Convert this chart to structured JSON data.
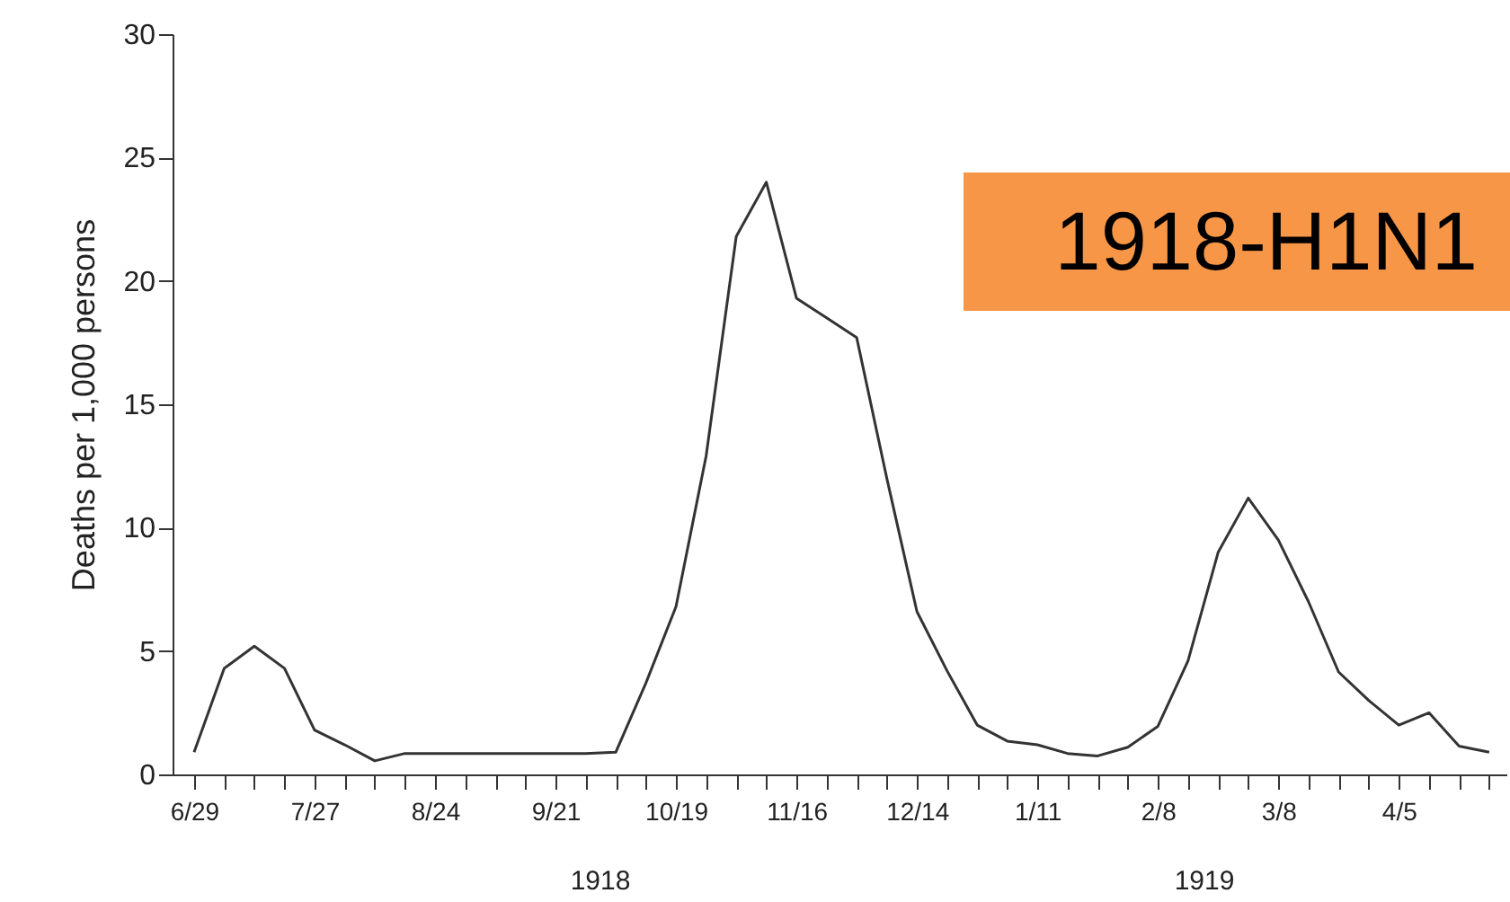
{
  "chart_data": {
    "type": "line",
    "ylabel": "Deaths per 1,000 persons",
    "annotations": [
      "1918",
      "1919",
      "1918-H1N1"
    ],
    "x": [
      "1918-06-29",
      "1918-07-06",
      "1918-07-13",
      "1918-07-20",
      "1918-07-27",
      "1918-08-03",
      "1918-08-10",
      "1918-08-17",
      "1918-08-24",
      "1918-08-31",
      "1918-09-07",
      "1918-09-14",
      "1918-09-21",
      "1918-09-28",
      "1918-10-05",
      "1918-10-12",
      "1918-10-19",
      "1918-10-26",
      "1918-11-02",
      "1918-11-09",
      "1918-11-16",
      "1918-11-23",
      "1918-11-30",
      "1918-12-07",
      "1918-12-14",
      "1918-12-21",
      "1918-12-28",
      "1919-01-04",
      "1919-01-11",
      "1919-01-18",
      "1919-01-25",
      "1919-02-01",
      "1919-02-08",
      "1919-02-15",
      "1919-02-22",
      "1919-03-01",
      "1919-03-08",
      "1919-03-15",
      "1919-03-22",
      "1919-03-29",
      "1919-04-05",
      "1919-04-12",
      "1919-04-19",
      "1919-04-26"
    ],
    "series": [
      {
        "color": "#333333",
        "values": [
          0.9,
          4.3,
          5.2,
          4.3,
          1.8,
          1.2,
          0.55,
          0.85,
          0.85,
          0.85,
          0.85,
          0.85,
          0.85,
          0.85,
          0.9,
          3.7,
          6.8,
          12.9,
          21.8,
          24.0,
          19.3,
          18.5,
          17.7,
          12.0,
          6.6,
          4.2,
          2.0,
          1.35,
          1.2,
          0.85,
          0.75,
          1.1,
          1.95,
          4.6,
          9.0,
          11.2,
          9.5,
          7.0,
          4.15,
          3.0,
          2.0,
          2.5,
          1.15,
          0.9
        ]
      }
    ],
    "xlim": [
      "1918-06-24",
      "1919-04-30"
    ],
    "xticks": [
      {
        "value": "1918-06-29",
        "label": "6/29"
      },
      {
        "value": "1918-07-06",
        "label": null
      },
      {
        "value": "1918-07-13",
        "label": null
      },
      {
        "value": "1918-07-20",
        "label": null
      },
      {
        "value": "1918-07-27",
        "label": "7/27"
      },
      {
        "value": "1918-08-03",
        "label": null
      },
      {
        "value": "1918-08-10",
        "label": null
      },
      {
        "value": "1918-08-17",
        "label": null
      },
      {
        "value": "1918-08-24",
        "label": "8/24"
      },
      {
        "value": "1918-08-31",
        "label": null
      },
      {
        "value": "1918-09-07",
        "label": null
      },
      {
        "value": "1918-09-14",
        "label": null
      },
      {
        "value": "1918-09-21",
        "label": "9/21"
      },
      {
        "value": "1918-09-28",
        "label": null
      },
      {
        "value": "1918-10-05",
        "label": null
      },
      {
        "value": "1918-10-12",
        "label": null
      },
      {
        "value": "1918-10-19",
        "label": "10/19"
      },
      {
        "value": "1918-10-26",
        "label": null
      },
      {
        "value": "1918-11-02",
        "label": null
      },
      {
        "value": "1918-11-09",
        "label": null
      },
      {
        "value": "1918-11-16",
        "label": "11/16"
      },
      {
        "value": "1918-11-23",
        "label": null
      },
      {
        "value": "1918-11-30",
        "label": null
      },
      {
        "value": "1918-12-07",
        "label": null
      },
      {
        "value": "1918-12-14",
        "label": "12/14"
      },
      {
        "value": "1918-12-21",
        "label": null
      },
      {
        "value": "1918-12-28",
        "label": null
      },
      {
        "value": "1919-01-04",
        "label": null
      },
      {
        "value": "1919-01-11",
        "label": "1/11"
      },
      {
        "value": "1919-01-18",
        "label": null
      },
      {
        "value": "1919-01-25",
        "label": null
      },
      {
        "value": "1919-02-01",
        "label": null
      },
      {
        "value": "1919-02-08",
        "label": "2/8"
      },
      {
        "value": "1919-02-15",
        "label": null
      },
      {
        "value": "1919-02-22",
        "label": null
      },
      {
        "value": "1919-03-01",
        "label": null
      },
      {
        "value": "1919-03-08",
        "label": "3/8"
      },
      {
        "value": "1919-03-15",
        "label": null
      },
      {
        "value": "1919-03-22",
        "label": null
      },
      {
        "value": "1919-03-29",
        "label": null
      },
      {
        "value": "1919-04-05",
        "label": "4/5"
      },
      {
        "value": "1919-04-12",
        "label": null
      },
      {
        "value": "1919-04-19",
        "label": null
      },
      {
        "value": "1919-04-26",
        "label": null
      }
    ],
    "ylim": [
      0,
      30
    ],
    "yticks": [
      0,
      5,
      10,
      15,
      20,
      25,
      30
    ],
    "grid": false,
    "marker": "none",
    "line_style": "solid"
  }
}
